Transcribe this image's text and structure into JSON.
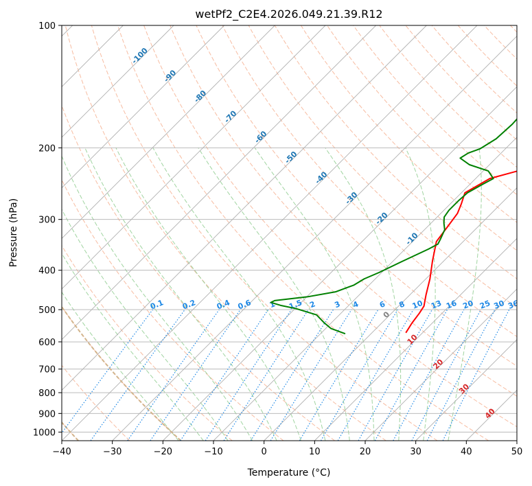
{
  "chart_data": {
    "type": "line",
    "title": "wetPf2_C2E4.2026.049.21.39.R12",
    "xlabel": "Temperature (°C)",
    "ylabel": "Pressure (hPa)",
    "xlim": [
      -40,
      50
    ],
    "ylim": [
      1050,
      100
    ],
    "x_ticks": [
      -40,
      -30,
      -20,
      -10,
      0,
      10,
      20,
      30,
      40,
      50
    ],
    "x_tick_labels": [
      "−40",
      "−30",
      "−20",
      "−10",
      "0",
      "10",
      "20",
      "30",
      "40",
      "50"
    ],
    "y_ticks": [
      100,
      200,
      300,
      400,
      500,
      600,
      700,
      800,
      900,
      1000
    ],
    "y_tick_labels": [
      "100",
      "200",
      "300",
      "400",
      "500",
      "600",
      "700",
      "800",
      "900",
      "1000"
    ],
    "y_scale": "log",
    "skew": "skew-T",
    "series": [
      {
        "name": "Temperature",
        "color": "#ff0000",
        "points": [
          [
            6.7,
            570
          ],
          [
            6.0,
            540
          ],
          [
            5.5,
            510
          ],
          [
            5.0,
            490
          ],
          [
            3.2,
            460
          ],
          [
            0.8,
            420
          ],
          [
            -2.2,
            380
          ],
          [
            -5.3,
            340
          ],
          [
            -6.1,
            310
          ],
          [
            -6.7,
            290
          ],
          [
            -7.8,
            275
          ],
          [
            -9.3,
            258
          ],
          [
            -7.2,
            238
          ],
          [
            -1.1,
            223
          ],
          [
            4.5,
            212
          ],
          [
            7.0,
            202
          ],
          [
            7.8,
            192
          ],
          [
            9.0,
            182
          ],
          [
            11.2,
            168
          ],
          [
            14.8,
            150
          ],
          [
            17.5,
            137
          ],
          [
            18.0,
            126
          ],
          [
            17.8,
            118
          ],
          [
            17.5,
            114
          ],
          [
            17.9,
            108
          ],
          [
            18.8,
            103
          ],
          [
            19.3,
            100
          ]
        ]
      },
      {
        "name": "Dewpoint",
        "color": "#008000",
        "points": [
          [
            -5.1,
            573
          ],
          [
            -9.0,
            556
          ],
          [
            -11.5,
            538
          ],
          [
            -14.5,
            515
          ],
          [
            -19.8,
            497
          ],
          [
            -23.5,
            488
          ],
          [
            -26.0,
            480
          ],
          [
            -25.6,
            475
          ],
          [
            -19.9,
            465
          ],
          [
            -15.3,
            452
          ],
          [
            -13.0,
            435
          ],
          [
            -12.2,
            420
          ],
          [
            -10.5,
            405
          ],
          [
            -8.1,
            380
          ],
          [
            -5.4,
            355
          ],
          [
            -4.5,
            345
          ],
          [
            -5.0,
            335
          ],
          [
            -6.0,
            318
          ],
          [
            -7.5,
            306
          ],
          [
            -8.6,
            296
          ],
          [
            -9.0,
            285
          ],
          [
            -9.0,
            270
          ],
          [
            -8.8,
            258
          ],
          [
            -7.5,
            246
          ],
          [
            -6.5,
            238
          ],
          [
            -9.0,
            228
          ],
          [
            -14.0,
            220
          ],
          [
            -17.1,
            212
          ],
          [
            -16.5,
            206
          ],
          [
            -15.0,
            201
          ],
          [
            -13.8,
            190
          ],
          [
            -13.5,
            175
          ],
          [
            -13.8,
            160
          ],
          [
            -13.2,
            148
          ],
          [
            -10.9,
            130
          ],
          [
            -6.0,
            112
          ],
          [
            -5.0,
            105
          ],
          [
            -6.0,
            100
          ]
        ]
      }
    ],
    "dry_adiabats_theta_c": [
      -40,
      -30,
      -20,
      -10,
      0,
      10,
      20,
      30,
      40,
      50,
      60,
      70,
      80,
      90,
      100,
      110,
      120,
      130,
      140,
      150,
      160,
      170,
      180,
      190,
      200
    ],
    "moist_adiabats_theta_w_c": [
      -20,
      -15,
      -10,
      -5,
      0,
      5,
      10,
      15,
      20,
      25,
      30,
      35
    ],
    "mixing_ratio_lines_gkg": [
      0.1,
      0.2,
      0.4,
      0.6,
      1,
      1.5,
      2,
      3,
      4,
      6,
      8,
      10,
      13,
      16,
      20,
      25,
      30,
      36
    ],
    "mixing_ratio_labels": [
      "0.1",
      "0.2",
      "0.4",
      "0.6",
      "1",
      "1.5",
      "2",
      "3",
      "4",
      "6",
      "8",
      "10",
      "13",
      "16",
      "20",
      "25",
      "30",
      "36"
    ],
    "isotherm_labels": [
      {
        "text": "-100",
        "t": -100
      },
      {
        "text": "-90",
        "t": -90
      },
      {
        "text": "-80",
        "t": -80
      },
      {
        "text": "-70",
        "t": -70
      },
      {
        "text": "-60",
        "t": -60
      },
      {
        "text": "-50",
        "t": -50
      },
      {
        "text": "-40",
        "t": -40
      },
      {
        "text": "-30",
        "t": -30
      },
      {
        "text": "-20",
        "t": -20
      },
      {
        "text": "-10",
        "t": -10
      },
      {
        "text": "0",
        "t": 0
      },
      {
        "text": "10",
        "t": 10
      },
      {
        "text": "20",
        "t": 20
      },
      {
        "text": "30",
        "t": 30
      },
      {
        "text": "40",
        "t": 40
      }
    ],
    "colors": {
      "temperature": "#ff0000",
      "dewpoint": "#008000",
      "isotherm": "#b0b0b0",
      "dry_adiabat": "#f4a582",
      "moist_adiabat": "#8fcc8f",
      "mixing_ratio": "#1e88e5",
      "cold_isotherm_label": "#1f77b4",
      "warm_isotherm_label": "#d62728",
      "zero_isotherm_label": "#808080",
      "special_curve": "#d2b48c"
    }
  }
}
